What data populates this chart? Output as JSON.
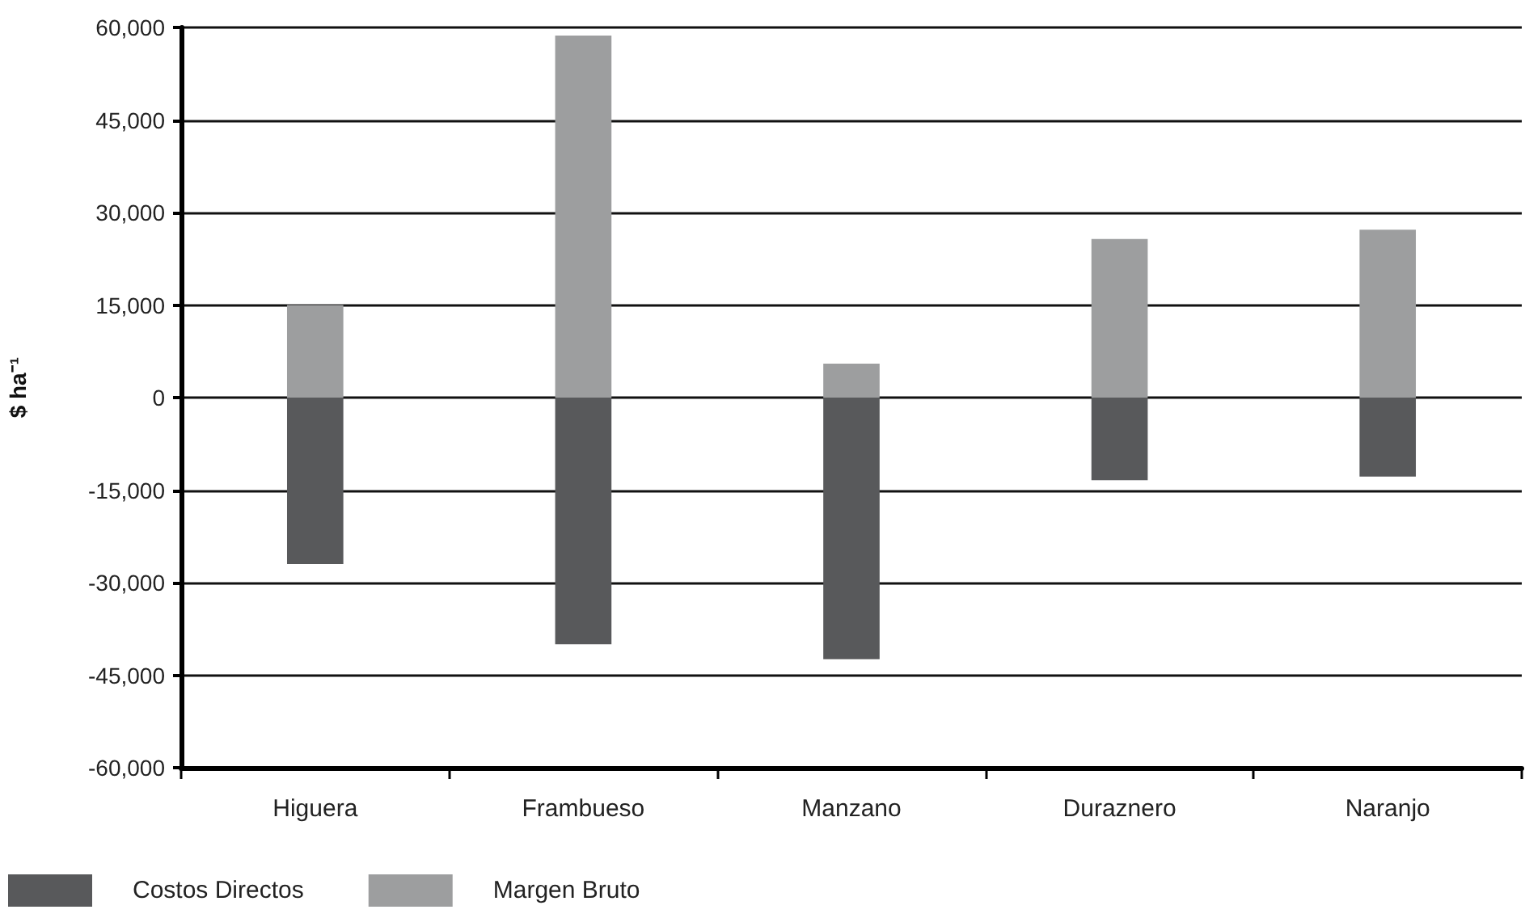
{
  "chart_data": {
    "type": "bar",
    "ylabel": "$ ha⁻¹",
    "stacked": true,
    "categories": [
      "Higuera",
      "Frambueso",
      "Manzano",
      "Duraznero",
      "Naranjo"
    ],
    "series": [
      {
        "name": "Costos Directos",
        "color": "#58595b",
        "values": [
          -27000,
          -40000,
          -42400,
          -13400,
          -12800
        ]
      },
      {
        "name": "Margen Bruto",
        "color": "#9d9e9f",
        "values": [
          15000,
          58700,
          5500,
          25700,
          27200
        ]
      }
    ],
    "ylim": [
      -60000,
      60000
    ],
    "yticks": [
      {
        "value": -60000,
        "label": "-60,000"
      },
      {
        "value": -45000,
        "label": "-45,000"
      },
      {
        "value": -30000,
        "label": "-30,000"
      },
      {
        "value": -15000,
        "label": "-15,000"
      },
      0,
      {
        "value": 15000,
        "label": "15,000"
      },
      {
        "value": 30000,
        "label": "30,000"
      },
      {
        "value": 45000,
        "label": "45,000"
      },
      {
        "value": 60000,
        "label": "60,000"
      }
    ],
    "grid": "y",
    "legend": "bottom left"
  }
}
